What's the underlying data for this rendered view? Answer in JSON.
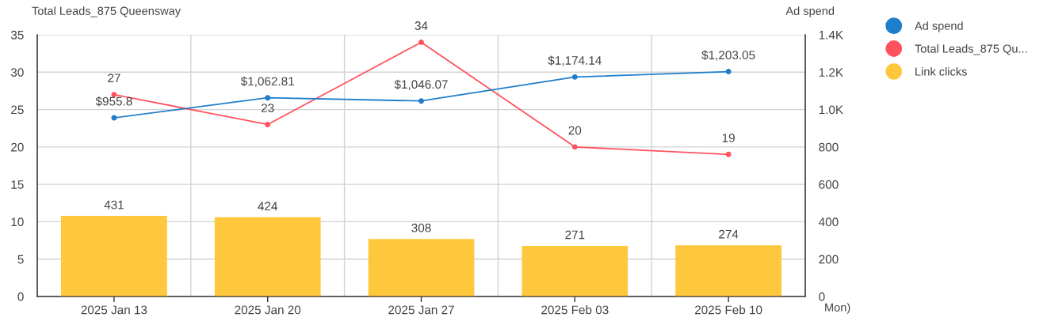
{
  "chart_data": {
    "type": "line",
    "ylabel": "Total Leads_875 Queensway",
    "y2label": "Ad spend",
    "xlabel": "Mon)",
    "categories": [
      "2025 Jan 13",
      "2025 Jan 20",
      "2025 Jan 27",
      "2025 Feb 03",
      "2025 Feb 10"
    ],
    "series": [
      {
        "name": "Ad spend",
        "color": "#1f7ecb",
        "axis": "y2",
        "values": [
          955.8,
          1062.81,
          1046.07,
          1174.14,
          1203.05
        ],
        "value_labels": [
          "$955.8",
          "$1,062.81",
          "$1,046.07",
          "$1,174.14",
          "$1,203.05"
        ]
      },
      {
        "name": "Total Leads_875 Qu...",
        "color": "#ff525f",
        "values": [
          27,
          23,
          34,
          20,
          19
        ],
        "value_labels": [
          "27",
          "23",
          "34",
          "20",
          "19"
        ]
      },
      {
        "name": "Link clicks",
        "color": "#ffc83c",
        "type": "bar",
        "axis": "y2",
        "values": [
          431,
          424,
          308,
          271,
          274
        ],
        "value_labels": [
          "431",
          "424",
          "308",
          "271",
          "274"
        ]
      }
    ],
    "ylim": [
      0,
      35
    ],
    "yticks": [
      0,
      5,
      10,
      15,
      20,
      25,
      30,
      35
    ],
    "y2lim": [
      0,
      1400
    ],
    "y2ticks": [
      0,
      200,
      400,
      600,
      800,
      {
        "value": 1000,
        "label": "1.0K"
      },
      {
        "value": 1200,
        "label": "1.2K"
      },
      {
        "value": 1400,
        "label": "1.4K"
      }
    ],
    "grid": true,
    "legend": "right",
    "marker": "circle",
    "line_style": "solid"
  }
}
